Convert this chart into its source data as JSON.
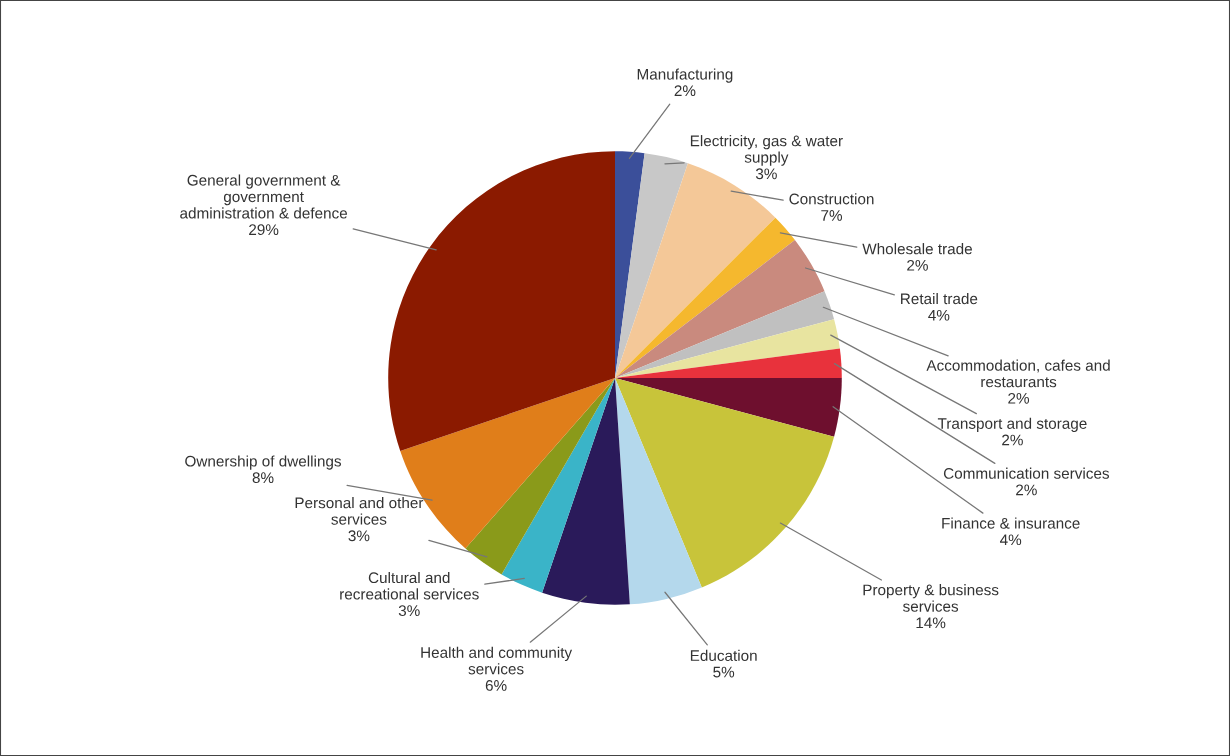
{
  "chart_data": {
    "type": "pie",
    "categories": [
      "Manufacturing",
      "Electricity, gas & water supply",
      "Construction",
      "Wholesale trade",
      "Retail trade",
      "Accommodation, cafes and restaurants",
      "Transport and storage",
      "Communication services",
      "Finance & insurance",
      "Property & business services",
      "Education",
      "Health and community services",
      "Cultural and recreational services",
      "Personal and other services",
      "Ownership of dwellings",
      "General government & government administration & defence"
    ],
    "values": [
      2,
      3,
      7,
      2,
      4,
      2,
      2,
      2,
      4,
      14,
      5,
      6,
      3,
      3,
      8,
      29
    ],
    "value_labels": [
      "2%",
      "3%",
      "7%",
      "2%",
      "4%",
      "2%",
      "2%",
      "2%",
      "4%",
      "14%",
      "5%",
      "6%",
      "3%",
      "3%",
      "8%",
      "29%"
    ],
    "colors": [
      "#3b4f9a",
      "#c8c8c8",
      "#f4c898",
      "#f5b82e",
      "#c98a7e",
      "#c0c0c0",
      "#e8e4a0",
      "#e8323c",
      "#6e0f2e",
      "#c8c43a",
      "#b4d8ec",
      "#2a1a5a",
      "#3ab4c8",
      "#8a9a1a",
      "#e07e1a",
      "#8b1a00"
    ]
  }
}
